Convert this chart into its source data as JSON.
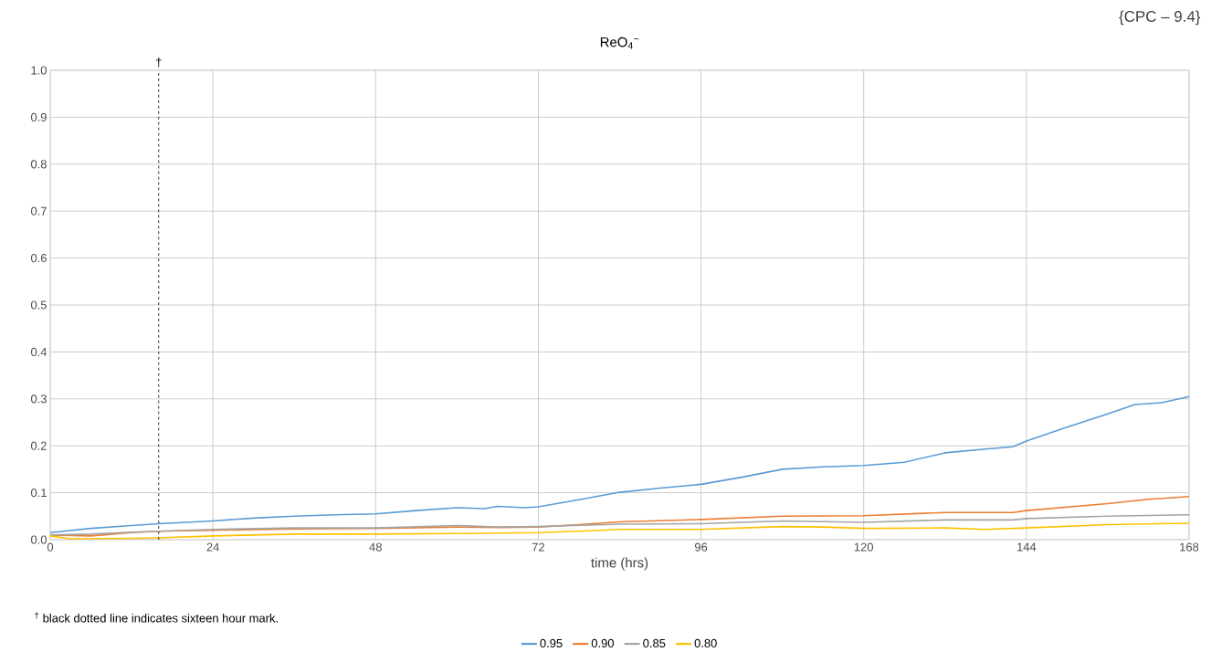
{
  "chart_data": {
    "type": "line",
    "title": "ReO$_{4}$$^{−}$",
    "xlabel": "time (hrs)",
    "annotations": [
      "{CPC – 9.4}",
      "$^{†}$ black dotted line indicates sixteen hour mark."
    ],
    "xlim": [
      0,
      168
    ],
    "xticks": [
      0,
      24,
      48,
      72,
      96,
      120,
      144,
      168
    ],
    "ylim": [
      0,
      1
    ],
    "yticks": [
      {
        "value": 0,
        "label": "0.0"
      },
      {
        "value": 0.1,
        "label": "0.1"
      },
      {
        "value": 0.2,
        "label": "0.2"
      },
      {
        "value": 0.3,
        "label": "0.3"
      },
      {
        "value": 0.4,
        "label": "0.4"
      },
      {
        "value": 0.5,
        "label": "0.5"
      },
      {
        "value": 0.6,
        "label": "0.6"
      },
      {
        "value": 0.7,
        "label": "0.7"
      },
      {
        "value": 0.8,
        "label": "0.8"
      },
      {
        "value": 0.9,
        "label": "0.9"
      },
      {
        "value": 1,
        "label": "1.0"
      }
    ],
    "grid": true,
    "legend": "bottom",
    "marker": "none",
    "line_style": "solid",
    "ref_lines": [
      {
        "axis": "x",
        "value": 16,
        "label": "†",
        "color": "#000000",
        "line_style": "dashed"
      }
    ],
    "series": [
      {
        "name": "0.95",
        "color": "#5b9bd5",
        "x": [
          0,
          6,
          12,
          16,
          24,
          30,
          36,
          42,
          48,
          54,
          60,
          64,
          66,
          70,
          72,
          78,
          84,
          90,
          96,
          102,
          108,
          114,
          120,
          126,
          132,
          138,
          142,
          144,
          150,
          156,
          160,
          164,
          168
        ],
        "values": [
          0.015,
          0.024,
          0.03,
          0.034,
          0.04,
          0.046,
          0.05,
          0.053,
          0.055,
          0.062,
          0.068,
          0.066,
          0.071,
          0.068,
          0.07,
          0.085,
          0.101,
          0.11,
          0.118,
          0.133,
          0.15,
          0.155,
          0.158,
          0.165,
          0.185,
          0.193,
          0.198,
          0.21,
          0.24,
          0.268,
          0.288,
          0.292,
          0.305
        ]
      },
      {
        "name": "0.90",
        "color": "#ed7d31",
        "x": [
          0,
          6,
          12,
          16,
          24,
          36,
          48,
          60,
          66,
          72,
          78,
          84,
          96,
          108,
          120,
          132,
          142,
          144,
          156,
          162,
          168
        ],
        "values": [
          0.01,
          0.008,
          0.015,
          0.018,
          0.02,
          0.023,
          0.024,
          0.027,
          0.026,
          0.027,
          0.032,
          0.038,
          0.043,
          0.05,
          0.051,
          0.058,
          0.058,
          0.062,
          0.077,
          0.086,
          0.092
        ]
      },
      {
        "name": "0.85",
        "color": "#a5a5a5",
        "x": [
          0,
          6,
          12,
          24,
          36,
          48,
          60,
          66,
          72,
          84,
          96,
          108,
          120,
          132,
          142,
          144,
          156,
          168
        ],
        "values": [
          0.01,
          0.012,
          0.016,
          0.022,
          0.025,
          0.025,
          0.03,
          0.027,
          0.028,
          0.033,
          0.034,
          0.04,
          0.037,
          0.042,
          0.042,
          0.045,
          0.05,
          0.053
        ]
      },
      {
        "name": "0.80",
        "color": "#ffc000",
        "x": [
          0,
          3,
          12,
          16,
          24,
          36,
          48,
          60,
          72,
          78,
          84,
          96,
          108,
          114,
          120,
          132,
          138,
          144,
          156,
          168
        ],
        "values": [
          0.008,
          0.002,
          0.003,
          0.004,
          0.008,
          0.012,
          0.012,
          0.013,
          0.015,
          0.018,
          0.022,
          0.022,
          0.028,
          0.027,
          0.024,
          0.025,
          0.022,
          0.025,
          0.032,
          0.035
        ]
      }
    ]
  }
}
